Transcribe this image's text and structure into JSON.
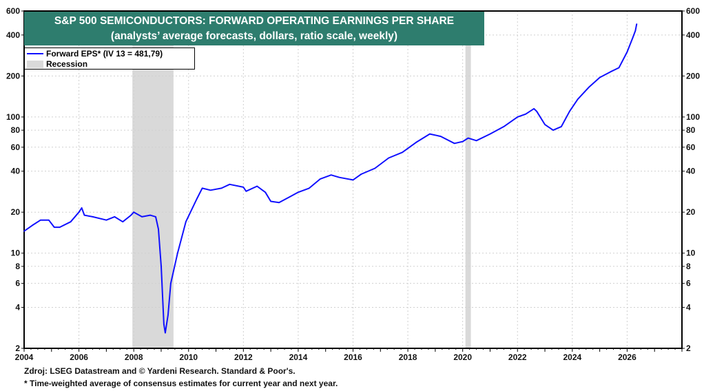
{
  "chart_data": {
    "type": "line",
    "title": "S&P 500 SEMICONDUCTORS: FORWARD OPERATING EARNINGS PER SHARE",
    "subtitle": "(analysts’ average forecasts, dollars, ratio scale, weekly)",
    "xlabel": "",
    "ylabel": "",
    "xlim": [
      2004,
      2028
    ],
    "ylim": [
      2,
      600
    ],
    "yscale": "log",
    "x_ticks": [
      "2004",
      "2006",
      "2008",
      "2010",
      "2012",
      "2014",
      "2016",
      "2018",
      "2020",
      "2022",
      "2024",
      "2026"
    ],
    "y_ticks": [
      2,
      4,
      6,
      8,
      10,
      20,
      40,
      60,
      80,
      100,
      200,
      400,
      600
    ],
    "grid": true,
    "legend_position": "top-left",
    "legend": [
      "Forward EPS* (IV 13 = 481,79)",
      "Recession"
    ],
    "recessions": [
      [
        2007.95,
        2009.45
      ],
      [
        2020.1,
        2020.3
      ]
    ],
    "series": [
      {
        "name": "Forward EPS* (IV 13 = 481,79)",
        "color": "#1010ff",
        "x": [
          2004.0,
          2004.3,
          2004.6,
          2004.9,
          2005.1,
          2005.3,
          2005.7,
          2006.0,
          2006.1,
          2006.2,
          2006.5,
          2007.0,
          2007.3,
          2007.6,
          2007.9,
          2008.0,
          2008.3,
          2008.6,
          2008.8,
          2008.9,
          2009.0,
          2009.1,
          2009.15,
          2009.25,
          2009.35,
          2009.6,
          2009.9,
          2010.3,
          2010.5,
          2010.8,
          2011.2,
          2011.5,
          2012.0,
          2012.1,
          2012.5,
          2012.8,
          2013.0,
          2013.3,
          2013.7,
          2014.0,
          2014.4,
          2014.8,
          2015.2,
          2015.5,
          2016.0,
          2016.3,
          2016.8,
          2017.3,
          2017.8,
          2018.3,
          2018.8,
          2019.2,
          2019.7,
          2020.0,
          2020.2,
          2020.5,
          2021.0,
          2021.5,
          2022.0,
          2022.3,
          2022.6,
          2022.7,
          2023.0,
          2023.3,
          2023.6,
          2023.9,
          2024.2,
          2024.6,
          2025.0,
          2025.4,
          2025.7,
          2026.0,
          2026.2,
          2026.3,
          2026.35
        ],
        "values": [
          14.5,
          16,
          17.5,
          17.5,
          15.5,
          15.5,
          17,
          20,
          21.5,
          19,
          18.5,
          17.5,
          18.5,
          17,
          19,
          20,
          18.5,
          19,
          18.5,
          15,
          8,
          3,
          2.6,
          3.5,
          6,
          10,
          17,
          25,
          30,
          29,
          30,
          32,
          30.5,
          28.5,
          31,
          28,
          24,
          23.5,
          26,
          28,
          30,
          35,
          37.5,
          36,
          34.5,
          38,
          42,
          50,
          55,
          65,
          75,
          72,
          64,
          66,
          70,
          67,
          75,
          85,
          100,
          105,
          115,
          110,
          88,
          80,
          85,
          110,
          135,
          165,
          195,
          215,
          230,
          300,
          380,
          430,
          482
        ]
      }
    ]
  },
  "footer": {
    "source": "Zdroj: LSEG Datastream and © Yardeni Research. Standard & Poor's.",
    "note": "* Time-weighted average of consensus estimates for current year and next year."
  }
}
